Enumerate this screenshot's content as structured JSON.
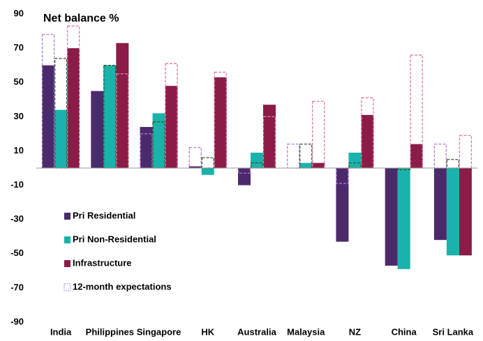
{
  "chart_data": {
    "type": "bar",
    "title": "Net balance %",
    "categories": [
      "India",
      "Philippines",
      "Singapore",
      "HK",
      "Australia",
      "Malaysia",
      "NZ",
      "China",
      "Sri Lanka"
    ],
    "series": [
      {
        "name": "Pri Residential",
        "color": "#4b2a6b",
        "expectation_color": "#b57be0",
        "values": [
          60,
          45,
          24,
          1,
          -10,
          0,
          -43,
          -57,
          -42
        ],
        "expectations": [
          78,
          null,
          20,
          12,
          -3,
          14,
          -9,
          null,
          14
        ]
      },
      {
        "name": "Pri Non-Residential",
        "color": "#19b3ab",
        "expectation_color": "#2f5a2a",
        "values": [
          34,
          60,
          32,
          -4,
          9,
          3,
          9,
          -59,
          -51
        ],
        "expectations": [
          64,
          60,
          27,
          6,
          3,
          14,
          3,
          -1,
          5
        ]
      },
      {
        "name": "Infrastructure",
        "color": "#8a1c47",
        "expectation_color": "#e07aa6",
        "values": [
          70,
          73,
          48,
          53,
          37,
          3,
          31,
          14,
          -51
        ],
        "expectations": [
          83,
          55,
          61,
          56,
          30,
          39,
          41,
          66,
          19
        ]
      }
    ],
    "expectations_name": "12-month expectations",
    "ylim": [
      -90,
      90
    ],
    "yticks": [
      -90,
      -70,
      -50,
      -30,
      -10,
      10,
      30,
      50,
      70,
      90
    ],
    "legend": "lower-left"
  }
}
